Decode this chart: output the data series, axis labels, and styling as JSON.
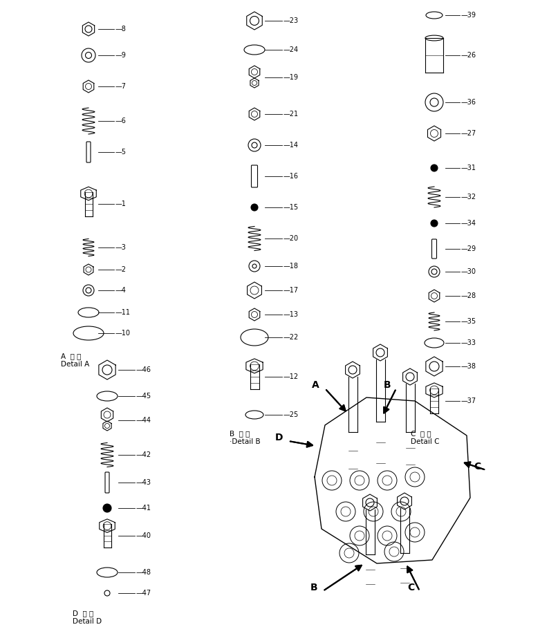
{
  "bg_color": "#ffffff",
  "fig_width": 7.94,
  "fig_height": 9.07,
  "detail_a_label": "A  詳 細\nDetail A",
  "detail_b_label": "B  詳 細\n·Detail B",
  "detail_c_label": "C  詳 細\nDetail C",
  "detail_d_label": "D  詳 細\nDetail D",
  "line_color": "#000000",
  "font_size": 7,
  "label_font_size": 7.5
}
